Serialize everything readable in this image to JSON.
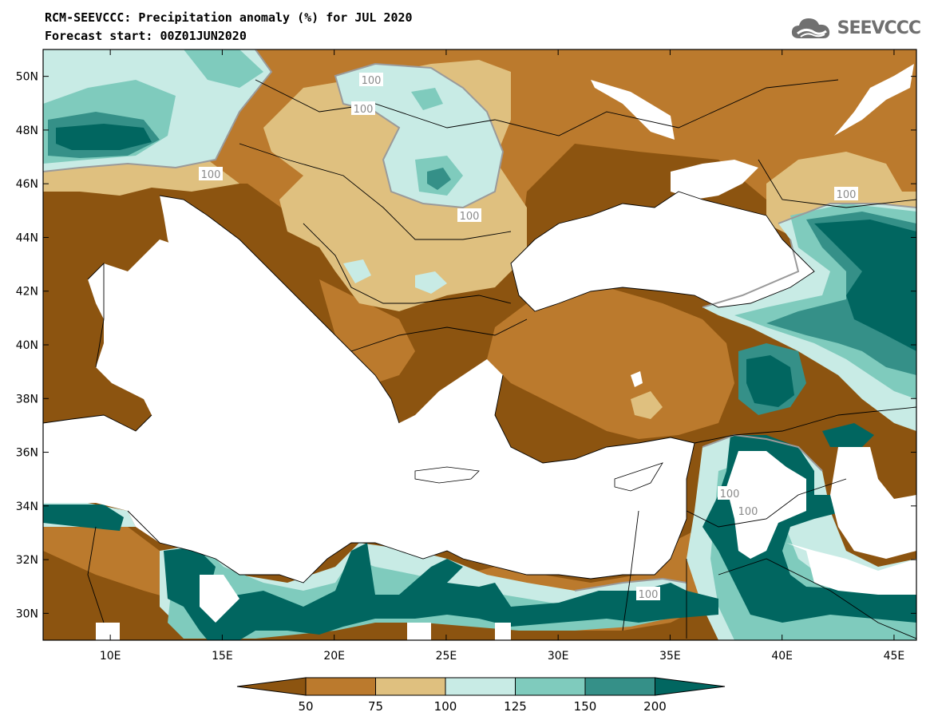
{
  "header": {
    "title_line1": "RCM-SEEVCCC: Precipitation anomaly (%) for JUL 2020",
    "title_line2": "Forecast start: 00Z01JUN2020",
    "logo_text": "SEEVCCC"
  },
  "map": {
    "lon_range": [
      7,
      46
    ],
    "lat_range": [
      29,
      51
    ],
    "lat_ticks": [
      "50N",
      "48N",
      "46N",
      "44N",
      "42N",
      "40N",
      "38N",
      "36N",
      "34N",
      "32N",
      "30N"
    ],
    "lon_ticks": [
      "10E",
      "15E",
      "20E",
      "25E",
      "30E",
      "35E",
      "40E",
      "45E"
    ],
    "contour_labels": [
      "100",
      "100",
      "100",
      "100",
      "100",
      "100",
      "100",
      "100"
    ]
  },
  "colorbar": {
    "colors": [
      "#8c5410",
      "#bb7a2d",
      "#dfc07f",
      "#c8ebe5",
      "#7fcbbd",
      "#359088",
      "#016660"
    ],
    "labels": [
      "50",
      "75",
      "100",
      "125",
      "150",
      "200"
    ]
  }
}
